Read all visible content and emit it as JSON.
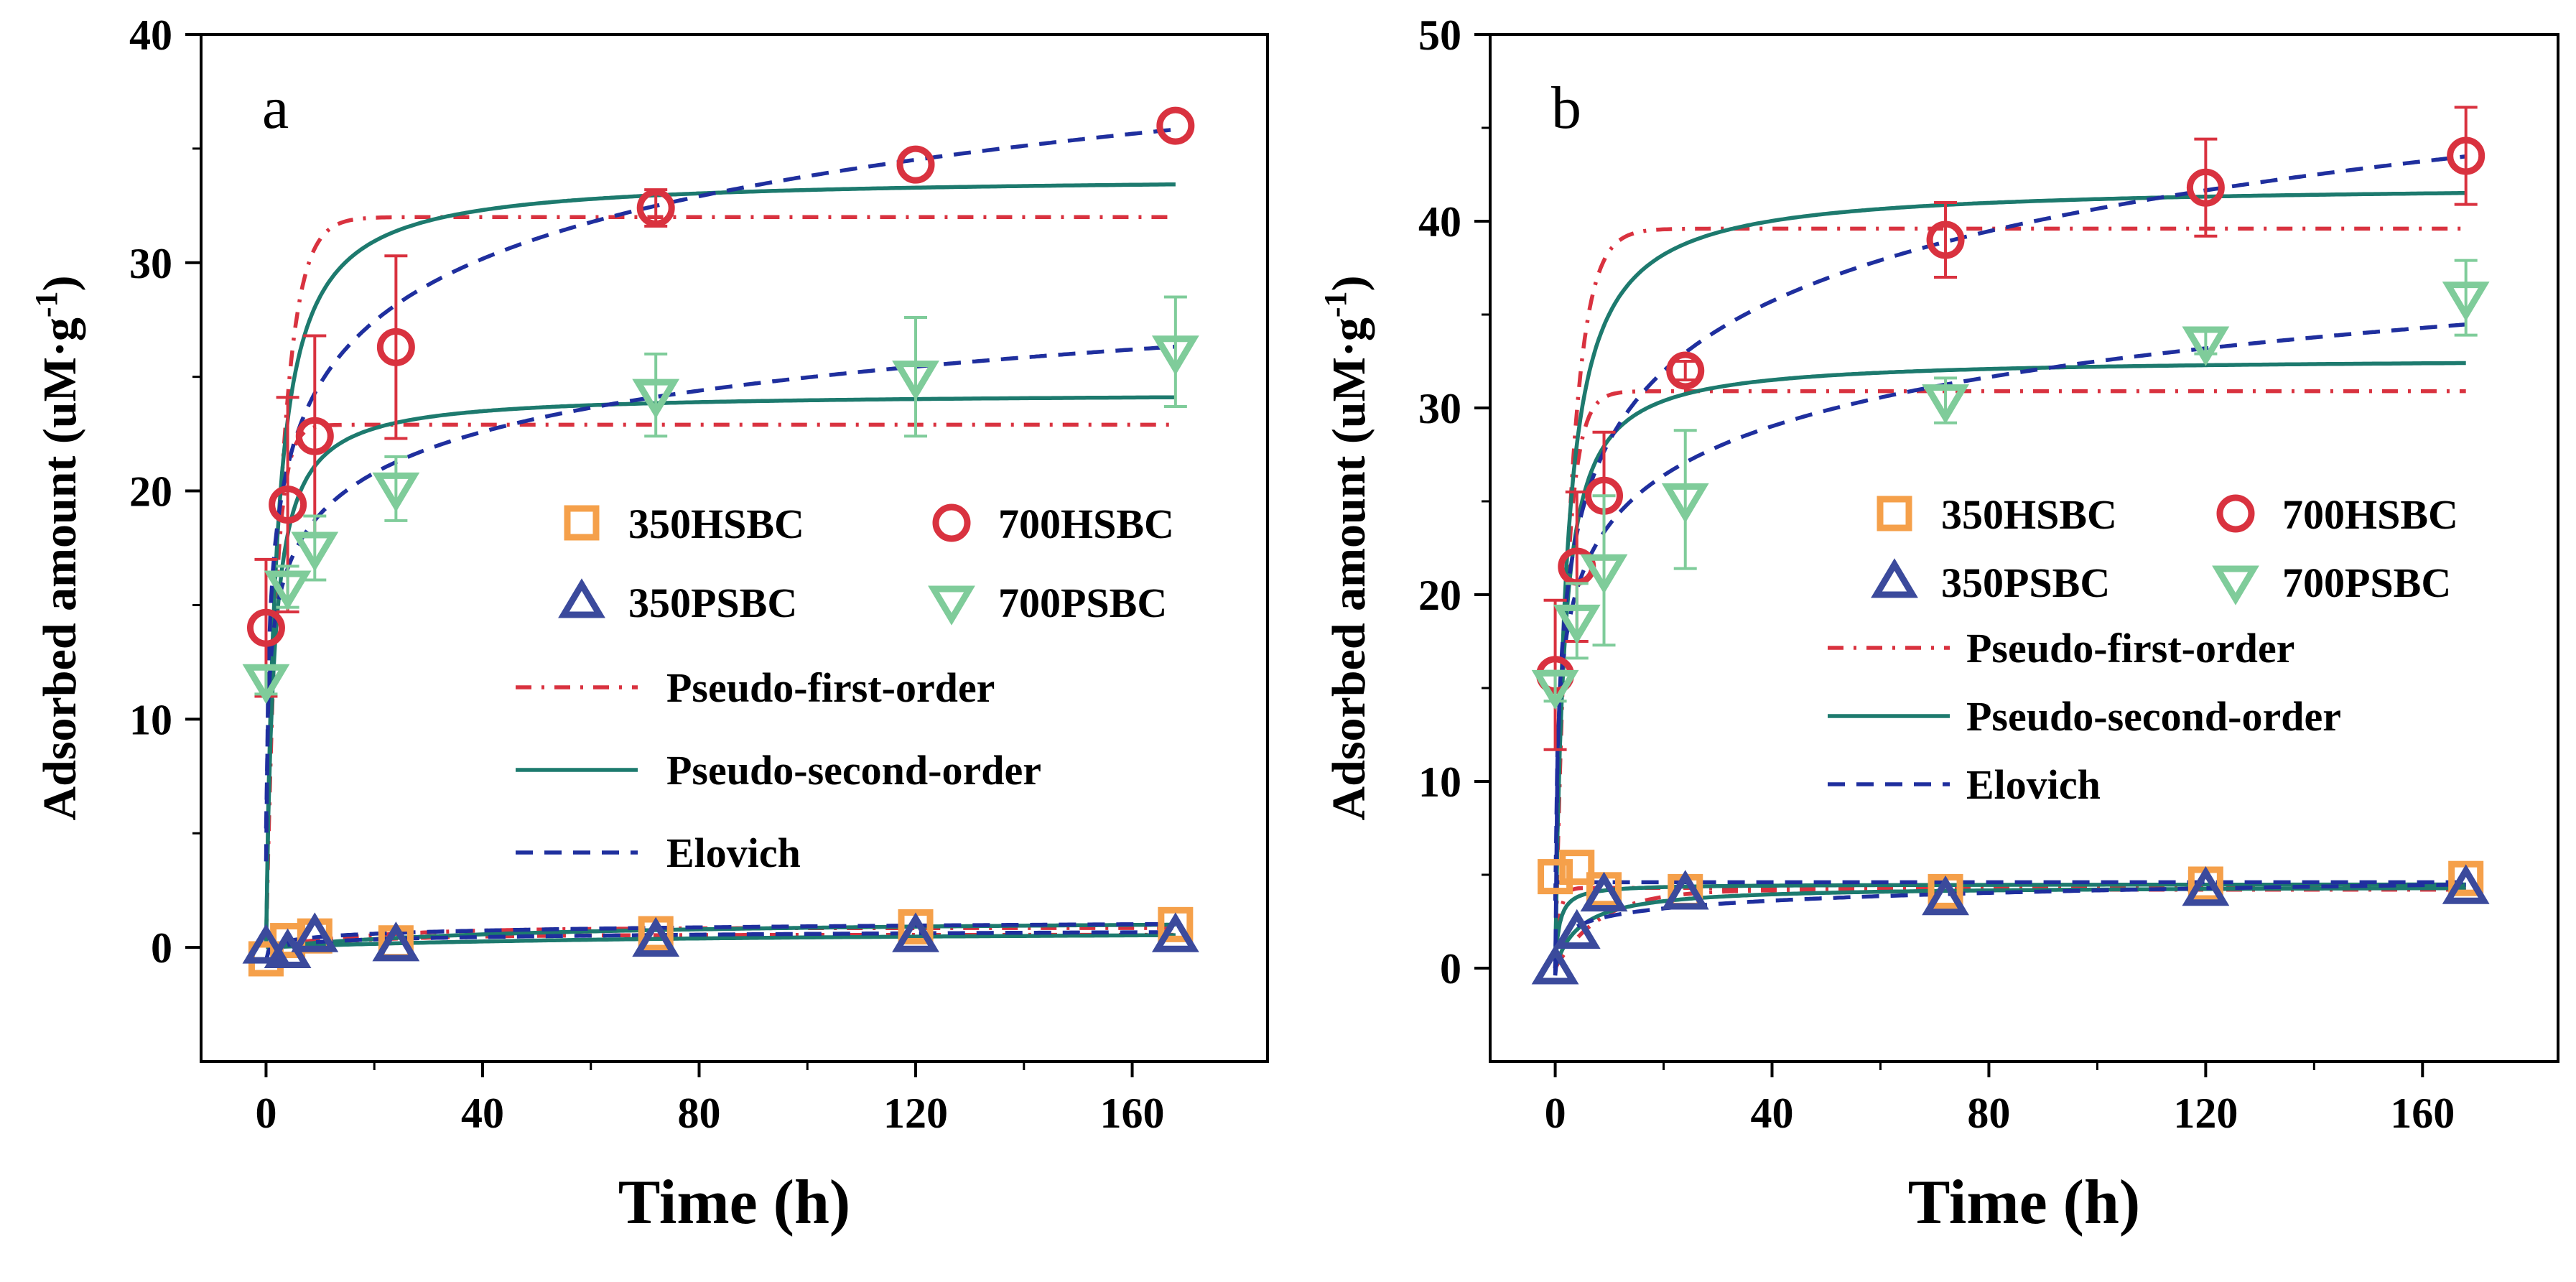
{
  "chart_data": [
    {
      "type": "scatter",
      "panel_label": "a",
      "xlabel": "Time (h)",
      "ylabel_main": "Adsorbed amount (uM·g",
      "ylabel_sup": "-1",
      "ylabel_end": ")",
      "xlim": [
        -12,
        185
      ],
      "ylim": [
        -5,
        40
      ],
      "xticks": [
        0,
        40,
        80,
        120,
        160
      ],
      "yticks": [
        0,
        10,
        20,
        30,
        40
      ],
      "x": [
        0,
        4,
        9,
        24,
        72,
        120,
        168
      ],
      "series": [
        {
          "name": "350HSBC",
          "marker": "square",
          "color": "#f5a04a",
          "values": [
            -0.5,
            0.3,
            0.5,
            0.2,
            0.6,
            0.9,
            1.0
          ],
          "errors": [
            0.3,
            0.3,
            0.3,
            0.3,
            0.3,
            0.3,
            0.3
          ]
        },
        {
          "name": "700HSBC",
          "marker": "circle",
          "color": "#d9323f",
          "values": [
            14.0,
            19.4,
            22.4,
            26.3,
            32.4,
            34.3,
            36.0
          ],
          "errors": [
            3.0,
            4.7,
            4.4,
            4.0,
            0.8,
            0.3,
            0.3
          ]
        },
        {
          "name": "350PSBC",
          "marker": "triangle-up",
          "color": "#3b4a9c",
          "values": [
            0.0,
            -0.2,
            0.5,
            0.1,
            0.3,
            0.5,
            0.5
          ],
          "errors": [
            0.2,
            0.2,
            0.2,
            0.2,
            0.2,
            0.2,
            0.2
          ]
        },
        {
          "name": "700PSBC",
          "marker": "triangle-down",
          "color": "#7fcc9a",
          "values": [
            11.7,
            15.8,
            17.5,
            20.1,
            24.2,
            25.0,
            26.1
          ],
          "errors": [
            0.6,
            0.9,
            1.4,
            1.4,
            1.8,
            2.6,
            2.4
          ]
        }
      ],
      "models": {
        "pfo": [
          {
            "qe": 32.0,
            "k": 0.35
          },
          {
            "qe": 22.9,
            "k": 0.6
          },
          {
            "qe": 0.85,
            "k": 0.05
          },
          {
            "qe": 0.55,
            "k": 0.05
          }
        ],
        "pso": [
          {
            "qe": 33.8,
            "k": 0.016
          },
          {
            "qe": 24.3,
            "k": 0.03
          },
          {
            "qe": 1.3,
            "k": 0.015
          },
          {
            "qe": 0.8,
            "k": 0.015
          }
        ],
        "elovich": [
          {
            "a": 15.6,
            "b": 3.95
          },
          {
            "a": 13.0,
            "b": 2.6
          },
          {
            "a": 0.0,
            "b": 0.2
          },
          {
            "a": -0.1,
            "b": 0.15
          }
        ]
      },
      "legend": {
        "placement": "center-right",
        "entries": [
          "350HSBC",
          "700HSBC",
          "350PSBC",
          "700PSBC"
        ],
        "lines": [
          "Pseudo-first-order",
          "Pseudo-second-order",
          "Elovich"
        ]
      }
    },
    {
      "type": "scatter",
      "panel_label": "b",
      "xlabel": "Time (h)",
      "ylabel_main": "Adsorbed amount (uM·g",
      "ylabel_sup": "-1",
      "ylabel_end": ")",
      "xlim": [
        -12,
        185
      ],
      "ylim": [
        -5,
        50
      ],
      "xticks": [
        0,
        40,
        80,
        120,
        160
      ],
      "yticks": [
        0,
        10,
        20,
        30,
        40,
        50
      ],
      "x": [
        0,
        4,
        9,
        24,
        72,
        120,
        168
      ],
      "series": [
        {
          "name": "350HSBC",
          "marker": "square",
          "color": "#f5a04a",
          "values": [
            4.9,
            5.4,
            4.2,
            4.1,
            4.1,
            4.5,
            4.8
          ],
          "errors": [
            0.3,
            0.3,
            0.3,
            0.3,
            0.3,
            0.3,
            0.3
          ]
        },
        {
          "name": "700HSBC",
          "marker": "circle",
          "color": "#d9323f",
          "values": [
            15.7,
            21.5,
            25.3,
            32.0,
            39.0,
            41.8,
            43.5
          ],
          "errors": [
            4.0,
            4.0,
            3.4,
            0.5,
            2.0,
            2.6,
            2.6
          ]
        },
        {
          "name": "350PSBC",
          "marker": "triangle-up",
          "color": "#3b4a9c",
          "values": [
            0.0,
            1.9,
            3.9,
            4.0,
            3.7,
            4.2,
            4.3
          ],
          "errors": [
            0.3,
            0.3,
            0.3,
            0.3,
            0.3,
            0.3,
            0.3
          ]
        },
        {
          "name": "700PSBC",
          "marker": "triangle-down",
          "color": "#7fcc9a",
          "values": [
            15.1,
            18.6,
            21.3,
            25.1,
            30.4,
            33.5,
            35.9
          ],
          "errors": [
            0.8,
            2.0,
            4.0,
            3.7,
            1.2,
            0.6,
            2.0
          ]
        }
      ],
      "models": {
        "pfo": [
          {
            "qe": 4.3,
            "k": 1.2
          },
          {
            "qe": 39.6,
            "k": 0.35
          },
          {
            "qe": 4.2,
            "k": 0.12
          },
          {
            "qe": 30.9,
            "k": 0.5
          }
        ],
        "pso": [
          {
            "qe": 4.5,
            "k": 0.3
          },
          {
            "qe": 42.0,
            "k": 0.012
          },
          {
            "qe": 4.4,
            "k": 0.05
          },
          {
            "qe": 32.7,
            "k": 0.02
          }
        ],
        "elovich": [
          {
            "a": 4.6,
            "b": 0.0
          },
          {
            "a": 15.8,
            "b": 5.4
          },
          {
            "a": 1.4,
            "b": 0.6
          },
          {
            "a": 15.0,
            "b": 3.8
          }
        ]
      },
      "legend": {
        "placement": "center-right",
        "entries": [
          "350HSBC",
          "700HSBC",
          "350PSBC",
          "700PSBC"
        ],
        "lines": [
          "Pseudo-first-order",
          "Pseudo-second-order",
          "Elovich"
        ]
      }
    }
  ],
  "colors": {
    "pfo": "#d9323f",
    "pso": "#1d7a6e",
    "elovich": "#1f2f9e"
  }
}
